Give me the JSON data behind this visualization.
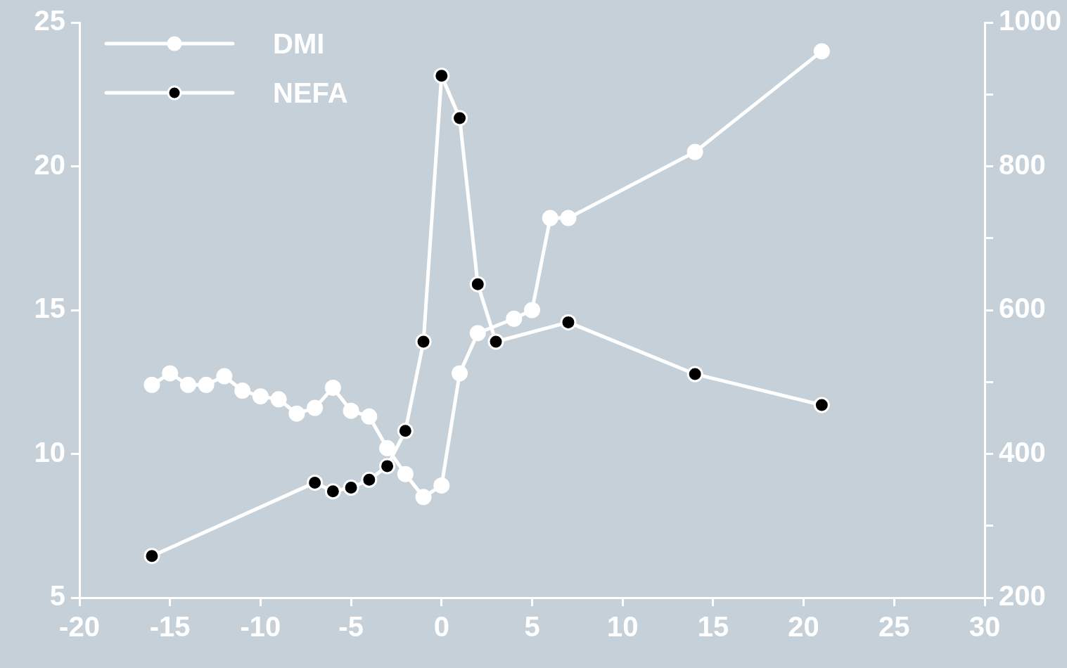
{
  "chart_data": {
    "type": "line",
    "marker": "circle",
    "legend": "top left",
    "grid": false,
    "xlim": [
      -20,
      30
    ],
    "xticks": [
      -20,
      -15,
      -10,
      -5,
      0,
      5,
      10,
      15,
      20,
      25,
      30
    ],
    "ylim": [
      5,
      25
    ],
    "yticks": [
      5,
      10,
      15,
      20,
      25
    ],
    "y2lim": [
      200,
      1000
    ],
    "y2ticks": [
      200,
      {
        "value": 300,
        "label": null
      },
      400,
      {
        "value": 500,
        "label": null
      },
      600,
      {
        "value": 700,
        "label": null
      },
      800,
      {
        "value": 900,
        "label": null
      },
      1000
    ],
    "series": [
      {
        "name": "DMI",
        "color": "#ffffff",
        "x": [
          -16,
          -15,
          -14,
          -13,
          -12,
          -11,
          -10,
          -9,
          -8,
          -7,
          -6,
          -5,
          -4,
          -3,
          -2,
          -1,
          0,
          1,
          2,
          4,
          5,
          6,
          7,
          14,
          21
        ],
        "values": [
          12.4,
          12.8,
          12.4,
          12.4,
          12.7,
          12.2,
          12.0,
          11.9,
          11.4,
          11.6,
          12.3,
          11.5,
          11.3,
          10.2,
          9.3,
          8.5,
          8.9,
          12.8,
          14.2,
          14.7,
          15.0,
          18.2,
          18.2,
          20.5,
          24.0
        ]
      },
      {
        "name": "NEFA",
        "color": "#ffffff",
        "axis": "y2",
        "x": [
          -16,
          -7,
          -6,
          -5,
          -4,
          -3,
          -2,
          -1,
          0,
          1,
          2,
          3,
          7,
          14,
          21
        ],
        "values": [
          258,
          360,
          348,
          353,
          364,
          383,
          432,
          556,
          926,
          867,
          636,
          556,
          583,
          511,
          468
        ],
        "colors": [
          "#000000",
          "#000000",
          "#000000",
          "#000000",
          "#000000",
          "#000000",
          "#000000",
          "#000000",
          "#000000",
          "#000000",
          "#000000",
          "#000000",
          "#000000",
          "#000000",
          "#000000"
        ]
      }
    ]
  }
}
